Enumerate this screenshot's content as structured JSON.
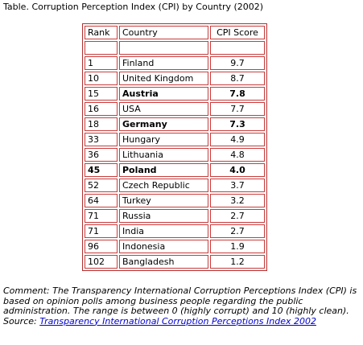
{
  "caption": "Table. Corruption Perception Index (CPI) by Country (2002)",
  "table": {
    "headers": [
      "Rank",
      "Country",
      "CPI Score"
    ],
    "rows": [
      {
        "rank": "1",
        "country": "Finland",
        "cpi": "9.7",
        "bold": false
      },
      {
        "rank": "10",
        "country": "United Kingdom",
        "cpi": "8.7",
        "bold": false
      },
      {
        "rank": "15",
        "country": "Austria",
        "cpi": "7.8",
        "bold": true,
        "rank_bold": false
      },
      {
        "rank": "16",
        "country": "USA",
        "cpi": "7.7",
        "bold": false
      },
      {
        "rank": "18",
        "country": "Germany",
        "cpi": "7.3",
        "bold": true,
        "rank_bold": false
      },
      {
        "rank": "33",
        "country": "Hungary",
        "cpi": "4.9",
        "bold": false
      },
      {
        "rank": "36",
        "country": "Lithuania",
        "cpi": "4.8",
        "bold": false
      },
      {
        "rank": "45",
        "country": "Poland",
        "cpi": "4.0",
        "bold": true,
        "rank_bold": true
      },
      {
        "rank": "52",
        "country": "Czech Republic",
        "cpi": "3.7",
        "bold": false
      },
      {
        "rank": "64",
        "country": "Turkey",
        "cpi": "3.2",
        "bold": false
      },
      {
        "rank": "71",
        "country": "Russia",
        "cpi": "2.7",
        "bold": false
      },
      {
        "rank": "71",
        "country": "India",
        "cpi": "2.7",
        "bold": false
      },
      {
        "rank": "96",
        "country": "Indonesia",
        "cpi": "1.9",
        "bold": false
      },
      {
        "rank": "102",
        "country": "Bangladesh",
        "cpi": "1.2",
        "bold": false
      }
    ]
  },
  "comment": {
    "text": "Comment: The Transparency International Corruption Perceptions Index (CPI) is based on opinion polls among business people regarding the public administration. The range is between 0 (highly corrupt) and 10 (highly clean).",
    "source_label": "Source: ",
    "source_link": "Transparency International Corruption Perceptions Index 2002"
  },
  "colors": {
    "border": "#c83c3c",
    "link": "#0000cc"
  }
}
